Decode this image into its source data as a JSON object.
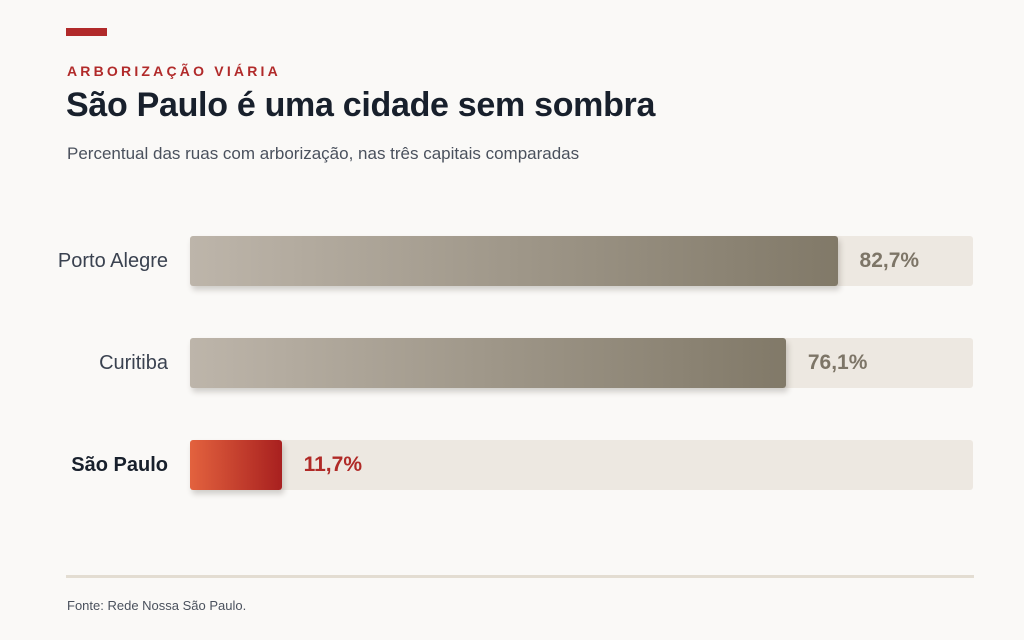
{
  "header": {
    "kicker": "ARBORIZAÇÃO VIÁRIA",
    "title": "São Paulo é uma cidade sem sombra",
    "subtitle": "Percentual das ruas com arborização, nas três capitais comparadas"
  },
  "footer": {
    "source": "Fonte: Rede Nossa São Paulo."
  },
  "colors": {
    "accent": "#b12a2a",
    "bar_gray_start": "#bdb5aa",
    "bar_gray_end": "#817968",
    "bar_red_start": "#e3623e",
    "bar_red_end": "#a8201f",
    "track": "#ede8e1",
    "value_gray": "#7d7567",
    "value_red": "#b02a27",
    "divider": "#e3ddd2"
  },
  "chart_data": {
    "type": "bar",
    "orientation": "horizontal",
    "categories": [
      "Porto Alegre",
      "Curitiba",
      "São Paulo"
    ],
    "values": [
      82.7,
      76.1,
      11.7
    ],
    "value_labels": [
      "82,7%",
      "76,1%",
      "11,7%"
    ],
    "highlighted": "São Paulo",
    "xlim": [
      0,
      100
    ],
    "unit": "%",
    "grid": false,
    "legend": "none"
  }
}
